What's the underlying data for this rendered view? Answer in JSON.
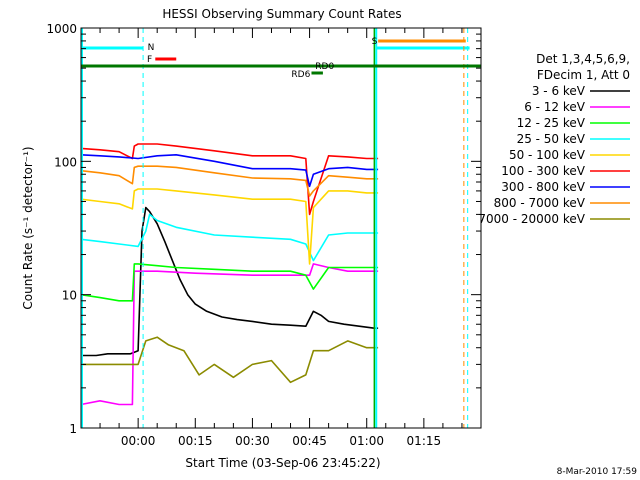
{
  "chart_data": {
    "type": "line",
    "title": "HESSI Observing Summary Count Rates",
    "xlabel": "Start Time (03-Sep-06 23:45:22)",
    "ylabel": "Count Rate (s⁻¹ detector⁻¹)",
    "yscale": "log",
    "ylim": [
      1,
      1000
    ],
    "xlim_minutes": [
      -15,
      90
    ],
    "x_ticks": [
      {
        "label": "00:00",
        "min": 0
      },
      {
        "label": "00:15",
        "min": 15
      },
      {
        "label": "00:30",
        "min": 30
      },
      {
        "label": "00:45",
        "min": 45
      },
      {
        "label": "01:00",
        "min": 60
      },
      {
        "label": "01:15",
        "min": 75
      }
    ],
    "y_ticks": [
      {
        "label": "1",
        "value": 1
      },
      {
        "label": "10",
        "value": 10
      },
      {
        "label": "100",
        "value": 100
      },
      {
        "label": "1000",
        "value": 1000
      }
    ],
    "legend": {
      "header": [
        "Det 1,3,4,5,6,9,",
        "FDecim 1, Att 0"
      ],
      "placement": "right"
    },
    "series": [
      {
        "name": "3 - 6 keV",
        "color": "#000000",
        "x": [
          -15,
          -11,
          -8,
          -4,
          -2,
          0,
          1,
          2,
          3,
          5,
          7,
          9,
          11,
          13,
          15,
          18,
          22,
          26,
          30,
          35,
          40,
          44,
          46,
          48,
          50,
          54,
          58,
          62,
          63
        ],
        "y": [
          3.5,
          3.5,
          3.6,
          3.6,
          3.6,
          3.8,
          30,
          45,
          42,
          34,
          25,
          18,
          13,
          10,
          8.5,
          7.5,
          6.8,
          6.5,
          6.3,
          6.0,
          5.9,
          5.8,
          7.5,
          7.0,
          6.3,
          6.0,
          5.8,
          5.6,
          5.6
        ]
      },
      {
        "name": "6 - 12 keV",
        "color": "#ff00ff",
        "x": [
          -15,
          -10,
          -5,
          -1.5,
          -1,
          0,
          5,
          15,
          30,
          45,
          46,
          50,
          55,
          60,
          63
        ],
        "y": [
          1.5,
          1.6,
          1.5,
          1.5,
          15,
          15,
          15,
          14.5,
          14,
          14,
          17,
          16,
          15,
          15,
          15
        ]
      },
      {
        "name": "12 - 25 keV",
        "color": "#00ff00",
        "x": [
          -15,
          -10,
          -5,
          -1.5,
          -1,
          0,
          5,
          10,
          20,
          30,
          40,
          44,
          46,
          50,
          55,
          60,
          63
        ],
        "y": [
          10,
          9.5,
          9,
          9,
          17,
          17,
          16.5,
          16,
          15.5,
          15,
          15,
          14,
          11,
          16,
          16,
          16,
          16
        ]
      },
      {
        "name": "25 - 50 keV",
        "color": "#00ffff",
        "x": [
          -15,
          -10,
          -5,
          0,
          2,
          3,
          5,
          10,
          20,
          30,
          40,
          44,
          46,
          50,
          55,
          60,
          63
        ],
        "y": [
          26,
          25,
          24,
          23,
          30,
          40,
          36,
          32,
          28,
          27,
          26,
          24,
          18,
          28,
          29,
          29,
          29
        ]
      },
      {
        "name": "50 - 100 keV",
        "color": "#ffd700",
        "x": [
          -15,
          -10,
          -5,
          -1.5,
          -1,
          0,
          5,
          10,
          20,
          30,
          40,
          44,
          45,
          46,
          50,
          55,
          60,
          63
        ],
        "y": [
          52,
          50,
          48,
          44,
          60,
          62,
          62,
          60,
          56,
          52,
          52,
          50,
          17,
          45,
          60,
          60,
          58,
          58
        ]
      },
      {
        "name": "100 - 300 keV",
        "color": "#ff0000",
        "x": [
          -15,
          -10,
          -5,
          -1.5,
          -1,
          0,
          5,
          10,
          20,
          30,
          40,
          44,
          45,
          46,
          50,
          55,
          60,
          63
        ],
        "y": [
          125,
          122,
          118,
          105,
          130,
          135,
          135,
          130,
          120,
          110,
          110,
          105,
          40,
          50,
          110,
          108,
          105,
          105
        ]
      },
      {
        "name": "300 - 800 keV",
        "color": "#0000ff",
        "x": [
          -15,
          -10,
          -5,
          0,
          5,
          10,
          20,
          30,
          40,
          44,
          45,
          46,
          50,
          55,
          60,
          63
        ],
        "y": [
          112,
          110,
          108,
          105,
          110,
          112,
          100,
          88,
          88,
          86,
          65,
          80,
          88,
          90,
          87,
          87
        ]
      },
      {
        "name": "800 - 7000 keV",
        "color": "#ff8c00",
        "x": [
          -15,
          -10,
          -5,
          -1.5,
          -1,
          0,
          5,
          10,
          20,
          30,
          40,
          44,
          45,
          46,
          50,
          55,
          60,
          63
        ],
        "y": [
          85,
          82,
          78,
          68,
          90,
          92,
          92,
          90,
          82,
          75,
          74,
          72,
          55,
          60,
          78,
          76,
          74,
          74
        ]
      },
      {
        "name": "7000 - 20000 keV",
        "color": "#8b8b00",
        "x": [
          -15,
          -10,
          -5,
          0,
          2,
          5,
          8,
          12,
          16,
          20,
          25,
          30,
          35,
          40,
          44,
          46,
          50,
          55,
          60,
          63
        ],
        "y": [
          3,
          3,
          3,
          3,
          4.5,
          4.8,
          4.2,
          3.8,
          2.5,
          3,
          2.4,
          3,
          3.2,
          2.2,
          2.5,
          3.8,
          3.8,
          4.5,
          4,
          4
        ]
      }
    ],
    "annotations": {
      "N": {
        "text": "N",
        "color": "#00ffff"
      },
      "F": {
        "text": "F",
        "color": "#ff0000"
      },
      "S": {
        "text": "S",
        "color": "#ff8c00"
      },
      "RD6": {
        "text": "RD6",
        "color": "#007700"
      },
      "RD0": {
        "text": "RD0",
        "color": "#007700"
      }
    },
    "timestamp": "8-Mar-2010 17:59"
  }
}
